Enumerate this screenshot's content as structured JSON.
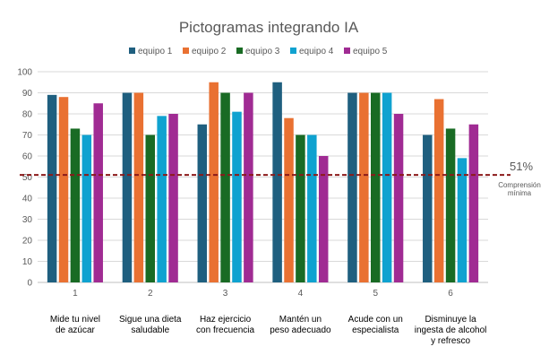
{
  "chart_data": {
    "type": "bar",
    "title": "Pictogramas integrando IA",
    "categories": [
      "1",
      "2",
      "3",
      "4",
      "5",
      "6"
    ],
    "category_descriptions": [
      [
        "Mide tu nivel",
        "de azúcar"
      ],
      [
        "Sigue una dieta",
        "saludable"
      ],
      [
        "Haz ejercicio",
        "con frecuencia"
      ],
      [
        "Mantén un",
        "peso adecuado"
      ],
      [
        "Acude con un",
        "especialista"
      ],
      [
        "Disminuye la",
        "ingesta de alcohol",
        "y refresco"
      ]
    ],
    "series": [
      {
        "name": "equipo 1",
        "color": "#1f5f7f",
        "values": [
          89,
          90,
          75,
          95,
          90,
          70
        ]
      },
      {
        "name": "equipo 2",
        "color": "#e97132",
        "values": [
          88,
          90,
          95,
          78,
          90,
          87
        ]
      },
      {
        "name": "equipo 3",
        "color": "#196b24",
        "values": [
          73,
          70,
          90,
          70,
          90,
          73
        ]
      },
      {
        "name": "equipo 4",
        "color": "#0fa2d0",
        "values": [
          70,
          79,
          81,
          70,
          90,
          59
        ]
      },
      {
        "name": "equipo 5",
        "color": "#a02b93",
        "values": [
          85,
          80,
          90,
          60,
          80,
          75
        ]
      }
    ],
    "ylim": [
      0,
      100
    ],
    "yticks": [
      0,
      10,
      20,
      30,
      40,
      50,
      60,
      70,
      80,
      90,
      100
    ],
    "grid": true,
    "legend_position": "top",
    "reference_line": {
      "value": 51,
      "label_value": "51%",
      "label_lines": [
        "Comprensión",
        "mínima"
      ],
      "color": "#8b1a1a",
      "style": "dashed"
    },
    "xlabel": "",
    "ylabel": ""
  }
}
